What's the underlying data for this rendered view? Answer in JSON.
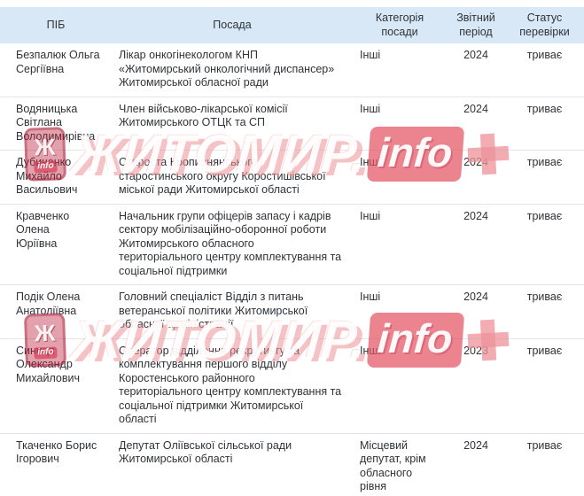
{
  "colors": {
    "header_bg": "#d9e8f7",
    "row_border": "#e2e5e9",
    "text": "#2f3337",
    "watermark_red": "#d23d52",
    "watermark_pink": "#ec9298"
  },
  "watermark": {
    "brand": "ЖИТОМИР.",
    "suffix": "info",
    "logo_glyph": "Ж",
    "logo_label": "info"
  },
  "table": {
    "columns": [
      {
        "label": "ПІБ"
      },
      {
        "label": "Посада"
      },
      {
        "label": "Категорія\nпосади"
      },
      {
        "label": "Звітний\nперіод"
      },
      {
        "label": "Статус\nперевірки"
      }
    ],
    "rows": [
      {
        "pib": "Безпалюк Ольга\nСергіївна",
        "posada": "Лікар онкогінекологом КНП\n«Житомирський онкологічний диспансер»\nЖитомирської обласної ради",
        "category": "Інші",
        "period": "2024",
        "status": "триває"
      },
      {
        "pib": "Водяницька\nСвітлана\nВолодимирівна",
        "posada": "Член військово-лікарської комісії\nЖитомирського ОТЦК та СП",
        "category": "Інші",
        "period": "2024",
        "status": "триває"
      },
      {
        "pib": "Дубиченко\nМихайло\nВасильович",
        "posada": "Староста Кропивнянського\nстаростинського округу Коростишівської\nміської ради Житомирської області",
        "category": "Інші",
        "period": "2024",
        "status": "триває"
      },
      {
        "pib": "Кравченко Олена\nЮріївна",
        "posada": "Начальник групи офіцерів запасу і кадрів\nсектору мобілізаційно-оборонної роботи\nЖитомирського обласного\nтериторіального центру комплектування та\nсоціальної підтримки",
        "category": "Інші",
        "period": "2024",
        "status": "триває"
      },
      {
        "pib": "Подік Олена\nАнатоліївна",
        "posada": "Головний спеціаліст Відділ з питань\nветеранської політики Житомирської\nобласної адміністрації",
        "category": "Інші",
        "period": "2024",
        "status": "триває"
      },
      {
        "pib": "Синиця\nОлександр\nМихайлович",
        "posada": "Оператор відділення рекрутингу та\nкомплектування першого відділу\nКоростенського районного\nтериторіального центру комплектування та\nсоціальної підтримки Житомирської\nобласті",
        "category": "Інші",
        "period": "2023",
        "status": "триває"
      },
      {
        "pib": "Ткаченко Борис\nІгорович",
        "posada": "Депутат Оліївської сільської ради\nЖитомирської області",
        "category": "Місцевий депутат, крім обласного рівня",
        "period": "2024",
        "status": "триває"
      }
    ]
  }
}
